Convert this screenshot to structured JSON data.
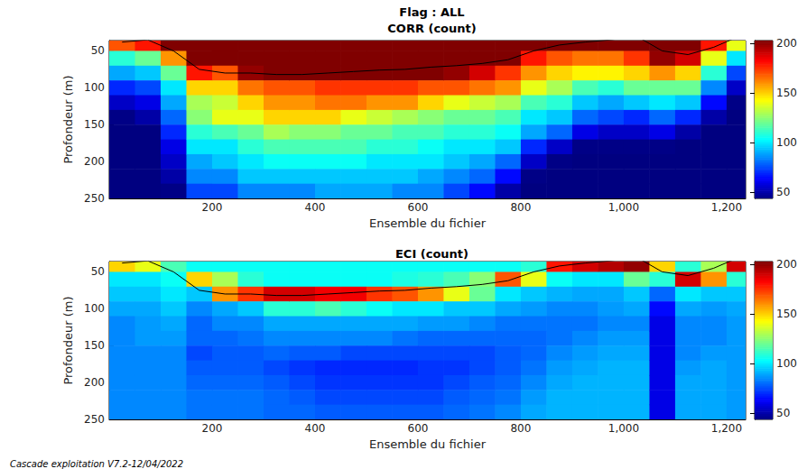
{
  "title": "Flag : ALL",
  "footer": "Cascade exploitation V7.2-12/04/2022",
  "chart_data": [
    {
      "type": "heatmap",
      "title": "CORR (count)",
      "x_label": "Ensemble du fichier",
      "y_label": "Profondeur (m)",
      "xlim": [
        0,
        1237
      ],
      "xticks": [
        200,
        400,
        600,
        800,
        1000,
        1200
      ],
      "ylim": [
        36,
        250
      ],
      "yticks": [
        50,
        100,
        150,
        200,
        250
      ],
      "x": [
        25,
        75,
        125,
        175,
        225,
        275,
        325,
        375,
        425,
        475,
        525,
        575,
        625,
        675,
        725,
        775,
        825,
        875,
        925,
        975,
        1025,
        1075,
        1125,
        1175,
        1225
      ],
      "y": [
        40,
        60,
        80,
        100,
        120,
        140,
        160,
        180,
        200,
        220,
        240
      ],
      "cells": [
        [
          170,
          110,
          90,
          70,
          55,
          45,
          40,
          38,
          36,
          35,
          35
        ],
        [
          180,
          120,
          95,
          75,
          60,
          50,
          42,
          38,
          36,
          35,
          35
        ],
        [
          230,
          160,
          120,
          100,
          90,
          80,
          70,
          60,
          55,
          50,
          45
        ],
        [
          235,
          230,
          180,
          150,
          130,
          125,
          110,
          100,
          90,
          85,
          75
        ],
        [
          235,
          235,
          170,
          150,
          135,
          140,
          115,
          100,
          95,
          85,
          75
        ],
        [
          235,
          232,
          200,
          165,
          150,
          140,
          120,
          110,
          100,
          95,
          85
        ],
        [
          235,
          230,
          215,
          170,
          160,
          150,
          130,
          115,
          105,
          95,
          85
        ],
        [
          235,
          230,
          215,
          170,
          160,
          150,
          125,
          115,
          105,
          95,
          85
        ],
        [
          235,
          230,
          215,
          175,
          165,
          150,
          125,
          115,
          105,
          95,
          90
        ],
        [
          235,
          230,
          215,
          175,
          165,
          140,
          120,
          115,
          105,
          95,
          90
        ],
        [
          235,
          230,
          215,
          175,
          160,
          135,
          120,
          110,
          100,
          95,
          90
        ],
        [
          235,
          230,
          210,
          175,
          160,
          130,
          115,
          110,
          100,
          95,
          85
        ],
        [
          235,
          228,
          205,
          170,
          150,
          125,
          115,
          105,
          100,
          90,
          85
        ],
        [
          235,
          228,
          200,
          170,
          140,
          120,
          110,
          100,
          95,
          85,
          75
        ],
        [
          235,
          225,
          190,
          165,
          135,
          120,
          110,
          100,
          90,
          80,
          65
        ],
        [
          235,
          215,
          175,
          160,
          130,
          115,
          105,
          95,
          80,
          65,
          50
        ],
        [
          225,
          180,
          160,
          140,
          115,
          100,
          90,
          70,
          55,
          45,
          40
        ],
        [
          220,
          170,
          150,
          130,
          110,
          95,
          80,
          55,
          45,
          40,
          38
        ],
        [
          220,
          165,
          145,
          115,
          95,
          80,
          60,
          45,
          40,
          38,
          36
        ],
        [
          225,
          165,
          145,
          110,
          90,
          75,
          55,
          45,
          40,
          38,
          36
        ],
        [
          215,
          175,
          150,
          120,
          95,
          70,
          55,
          45,
          40,
          38,
          36
        ],
        [
          210,
          200,
          160,
          120,
          100,
          80,
          60,
          45,
          40,
          38,
          36
        ],
        [
          215,
          190,
          150,
          120,
          95,
          70,
          50,
          42,
          38,
          36,
          35
        ],
        [
          180,
          140,
          110,
          85,
          65,
          50,
          42,
          38,
          36,
          35,
          35
        ],
        [
          140,
          100,
          75,
          55,
          45,
          40,
          38,
          36,
          35,
          35,
          35
        ]
      ],
      "colorbar": {
        "range": [
          44,
          203
        ],
        "ticks": [
          50,
          100,
          150,
          200
        ]
      },
      "bottom_line": {
        "x": [
          25,
          75,
          125,
          175,
          225,
          275,
          325,
          375,
          425,
          475,
          525,
          575,
          625,
          675,
          725,
          775,
          825,
          875,
          925,
          975,
          1025,
          1075,
          1125,
          1175,
          1225
        ],
        "y": [
          38,
          35,
          50,
          75,
          80,
          80,
          82,
          82,
          80,
          78,
          76,
          75,
          72,
          70,
          67,
          62,
          50,
          42,
          38,
          35,
          30,
          50,
          55,
          45,
          30
        ]
      }
    },
    {
      "type": "heatmap",
      "title": "ECI (count)",
      "x_label": "Ensemble du fichier",
      "y_label": "Profondeur (m)",
      "xlim": [
        0,
        1237
      ],
      "xticks": [
        200,
        400,
        600,
        800,
        1000,
        1200
      ],
      "ylim": [
        36,
        250
      ],
      "yticks": [
        50,
        100,
        150,
        200,
        250
      ],
      "x": [
        25,
        75,
        125,
        175,
        225,
        275,
        325,
        375,
        425,
        475,
        525,
        575,
        625,
        675,
        725,
        775,
        825,
        875,
        925,
        975,
        1025,
        1075,
        1125,
        1175,
        1225
      ],
      "y": [
        40,
        60,
        80,
        100,
        120,
        140,
        160,
        180,
        200,
        220,
        240
      ],
      "cells": [
        [
          150,
          100,
          95,
          90,
          85,
          85,
          85,
          85,
          85,
          85,
          85
        ],
        [
          140,
          100,
          95,
          90,
          88,
          88,
          85,
          85,
          85,
          85,
          85
        ],
        [
          115,
          105,
          100,
          95,
          90,
          88,
          85,
          85,
          85,
          85,
          85
        ],
        [
          105,
          150,
          95,
          85,
          80,
          80,
          75,
          78,
          80,
          82,
          82
        ],
        [
          105,
          130,
          160,
          90,
          85,
          80,
          78,
          78,
          80,
          82,
          82
        ],
        [
          105,
          110,
          175,
          95,
          85,
          82,
          78,
          78,
          80,
          82,
          82
        ],
        [
          105,
          105,
          190,
          110,
          90,
          85,
          80,
          75,
          78,
          80,
          80
        ],
        [
          105,
          105,
          190,
          110,
          90,
          85,
          78,
          72,
          75,
          78,
          80
        ],
        [
          105,
          105,
          185,
          115,
          90,
          85,
          78,
          70,
          72,
          75,
          78
        ],
        [
          105,
          105,
          185,
          110,
          90,
          85,
          75,
          70,
          72,
          75,
          78
        ],
        [
          105,
          105,
          175,
          105,
          90,
          85,
          75,
          70,
          72,
          75,
          78
        ],
        [
          105,
          108,
          170,
          100,
          90,
          82,
          75,
          70,
          72,
          75,
          78
        ],
        [
          105,
          110,
          160,
          100,
          88,
          80,
          75,
          72,
          72,
          75,
          78
        ],
        [
          105,
          115,
          140,
          95,
          88,
          80,
          75,
          72,
          75,
          78,
          80
        ],
        [
          105,
          125,
          120,
          95,
          85,
          80,
          75,
          75,
          78,
          80,
          82
        ],
        [
          105,
          170,
          100,
          90,
          82,
          80,
          78,
          78,
          80,
          82,
          85
        ],
        [
          110,
          140,
          95,
          88,
          82,
          80,
          80,
          82,
          85,
          88,
          90
        ],
        [
          180,
          105,
          92,
          85,
          82,
          82,
          85,
          88,
          90,
          92,
          92
        ],
        [
          190,
          100,
          90,
          85,
          82,
          85,
          88,
          90,
          92,
          92,
          92
        ],
        [
          195,
          100,
          90,
          88,
          85,
          88,
          90,
          92,
          92,
          92,
          92
        ],
        [
          200,
          120,
          95,
          90,
          85,
          88,
          90,
          92,
          92,
          92,
          92
        ],
        [
          150,
          110,
          80,
          65,
          60,
          60,
          60,
          60,
          60,
          60,
          60
        ],
        [
          110,
          190,
          100,
          90,
          85,
          85,
          85,
          88,
          90,
          90,
          90
        ],
        [
          130,
          160,
          95,
          88,
          85,
          85,
          88,
          90,
          90,
          90,
          90
        ],
        [
          190,
          110,
          95,
          90,
          88,
          88,
          88,
          88,
          88,
          88,
          88
        ]
      ],
      "colorbar": {
        "range": [
          44,
          203
        ],
        "ticks": [
          50,
          100,
          150,
          200
        ]
      },
      "bottom_line": {
        "x": [
          25,
          75,
          125,
          175,
          225,
          275,
          325,
          375,
          425,
          475,
          525,
          575,
          625,
          675,
          725,
          775,
          825,
          875,
          925,
          975,
          1025,
          1075,
          1125,
          1175,
          1225
        ],
        "y": [
          38,
          35,
          50,
          75,
          80,
          80,
          82,
          82,
          80,
          78,
          76,
          75,
          72,
          70,
          67,
          62,
          50,
          42,
          38,
          35,
          30,
          50,
          55,
          45,
          30
        ]
      }
    }
  ]
}
